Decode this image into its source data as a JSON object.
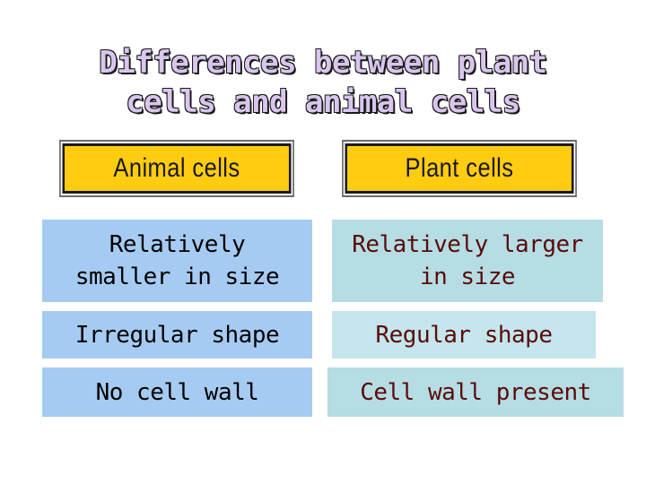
{
  "title": {
    "line1": "Differences between plant",
    "line2": "cells and animal cells"
  },
  "headers": {
    "animal": "Animal cells",
    "plant": "Plant cells"
  },
  "rows": [
    {
      "animal": [
        "Relatively",
        "smaller in size"
      ],
      "plant": [
        "Relatively larger",
        "in size"
      ]
    },
    {
      "animal": [
        "Irregular shape"
      ],
      "plant": [
        "Regular shape"
      ]
    },
    {
      "animal": [
        "No cell wall"
      ],
      "plant": [
        "Cell wall present"
      ]
    }
  ],
  "colors": {
    "header_fill": "#ffcc11",
    "animal_fill": "#a6cbf2",
    "plant_fill": "#b5dde3",
    "title_fill": "#d9c6ee",
    "plant_text": "#5a0b0b"
  }
}
